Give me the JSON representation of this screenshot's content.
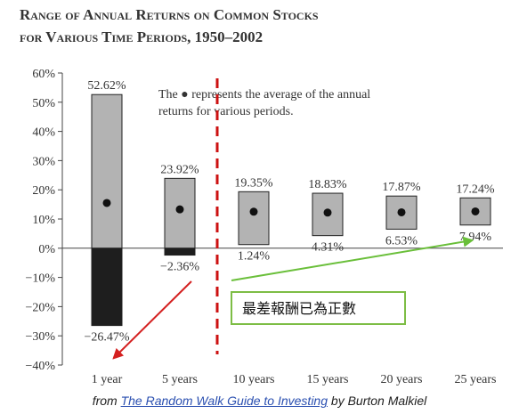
{
  "title": {
    "line1": "Range of Annual Returns on Common Stocks",
    "line2": "for Various Time Periods, 1950–2002"
  },
  "legend_note": {
    "line1": "The ● represents the average of the annual",
    "line2": "returns for various periods."
  },
  "annotation": {
    "text": "最差報酬已為正數",
    "box_border_color": "#7dbd45",
    "arrow_color_red": "#d42020",
    "arrow_color_green": "#6abf3a",
    "divider_color": "#cc1111"
  },
  "caption": {
    "prefix": "from",
    "link_text": "The Random Walk Guide to Investing",
    "suffix": "by Burton Malkiel"
  },
  "chart_data": {
    "type": "bar",
    "title": "Range of Annual Returns on Common Stocks for Various Time Periods, 1950–2002",
    "categories": [
      "1 year",
      "5 years",
      "10 years",
      "15 years",
      "20 years",
      "25 years"
    ],
    "series": [
      {
        "name": "max",
        "values": [
          52.62,
          23.92,
          19.35,
          18.83,
          17.87,
          17.24
        ]
      },
      {
        "name": "min",
        "values": [
          -26.47,
          -2.36,
          1.24,
          4.31,
          6.53,
          7.94
        ]
      },
      {
        "name": "average",
        "values": [
          15.5,
          13.3,
          12.5,
          12.2,
          12.3,
          12.6
        ]
      }
    ],
    "max_labels": [
      "52.62%",
      "23.92%",
      "19.35%",
      "18.83%",
      "17.87%",
      "17.24%"
    ],
    "min_labels": [
      "−26.47%",
      "−2.36%",
      "1.24%",
      "4.31%",
      "6.53%",
      "7.94%"
    ],
    "y_ticks": [
      "60%",
      "50%",
      "40%",
      "30%",
      "20%",
      "10%",
      "0%",
      "−10%",
      "−20%",
      "−30%",
      "−40%"
    ],
    "ylim": [
      -40,
      60
    ],
    "xlabel": "",
    "ylabel": "",
    "grid": false,
    "colors": {
      "positive": "#b3b3b3",
      "negative": "#1e1e1e",
      "axis": "#444444"
    }
  }
}
